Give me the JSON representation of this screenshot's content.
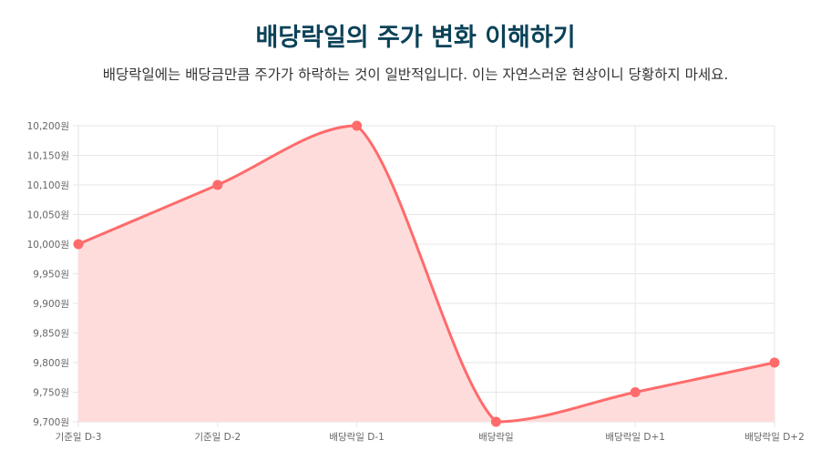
{
  "header": {
    "title": "배당락일의 주가 변화 이해하기",
    "subtitle": "배당락일에는 배당금만큼 주가가 하락하는 것이 일반적입니다. 이는 자연스러운 현상이니 당황하지 마세요."
  },
  "chart_data": {
    "type": "area",
    "categories": [
      "기준일 D-3",
      "기준일 D-2",
      "배당락일 D-1",
      "배당락일",
      "배당락일 D+1",
      "배당락일 D+2"
    ],
    "series": [
      {
        "values": [
          10000,
          10100,
          10200,
          9700,
          9750,
          9800
        ]
      }
    ],
    "yticks": [
      "10,200원",
      "10,150원",
      "10,100원",
      "10,050원",
      "10,000원",
      "9,950원",
      "9,900원",
      "9,850원",
      "9,800원",
      "9,750원",
      "9,700원"
    ],
    "ylim": [
      9700,
      10200
    ],
    "ystep": 50,
    "grid": true,
    "colors": {
      "line": "#ff6b6b",
      "fill": "#ffdcdc",
      "grid": "#e6e6e6"
    }
  }
}
